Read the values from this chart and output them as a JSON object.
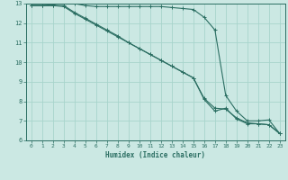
{
  "xlabel": "Humidex (Indice chaleur)",
  "bg_color": "#cbe8e3",
  "grid_color": "#a8d4cc",
  "line_color": "#2b6e62",
  "xlim": [
    -0.5,
    23.5
  ],
  "ylim": [
    6,
    13
  ],
  "line1_x": [
    0,
    1,
    2,
    3,
    4,
    5,
    6,
    7,
    8,
    9,
    10,
    11,
    12,
    13,
    14,
    15,
    16,
    17,
    18,
    19,
    20,
    21,
    22,
    23
  ],
  "line1_y": [
    12.9,
    12.9,
    12.95,
    13.0,
    13.0,
    12.9,
    12.85,
    12.85,
    12.85,
    12.85,
    12.85,
    12.85,
    12.85,
    12.8,
    12.75,
    12.7,
    12.3,
    11.65,
    8.3,
    7.5,
    7.0,
    7.0,
    7.05,
    6.35
  ],
  "line2_x": [
    0,
    1,
    2,
    3,
    4,
    5,
    6,
    7,
    8,
    9,
    10,
    11,
    12,
    13,
    14,
    15,
    16,
    17,
    18,
    19,
    20,
    21,
    22,
    23
  ],
  "line2_y": [
    12.9,
    12.9,
    12.9,
    12.9,
    12.55,
    12.25,
    11.95,
    11.65,
    11.35,
    11.0,
    10.7,
    10.4,
    10.1,
    9.8,
    9.5,
    9.2,
    8.15,
    7.65,
    7.6,
    7.15,
    6.9,
    6.85,
    6.8,
    6.35
  ],
  "line3_x": [
    0,
    1,
    2,
    3,
    4,
    5,
    6,
    7,
    8,
    9,
    10,
    11,
    12,
    13,
    14,
    15,
    16,
    17,
    18,
    19,
    20,
    21,
    22,
    23
  ],
  "line3_y": [
    12.9,
    12.9,
    12.9,
    12.85,
    12.5,
    12.2,
    11.9,
    11.6,
    11.3,
    11.0,
    10.7,
    10.4,
    10.1,
    9.8,
    9.5,
    9.2,
    8.1,
    7.5,
    7.65,
    7.1,
    6.85,
    6.85,
    6.8,
    6.35
  ]
}
